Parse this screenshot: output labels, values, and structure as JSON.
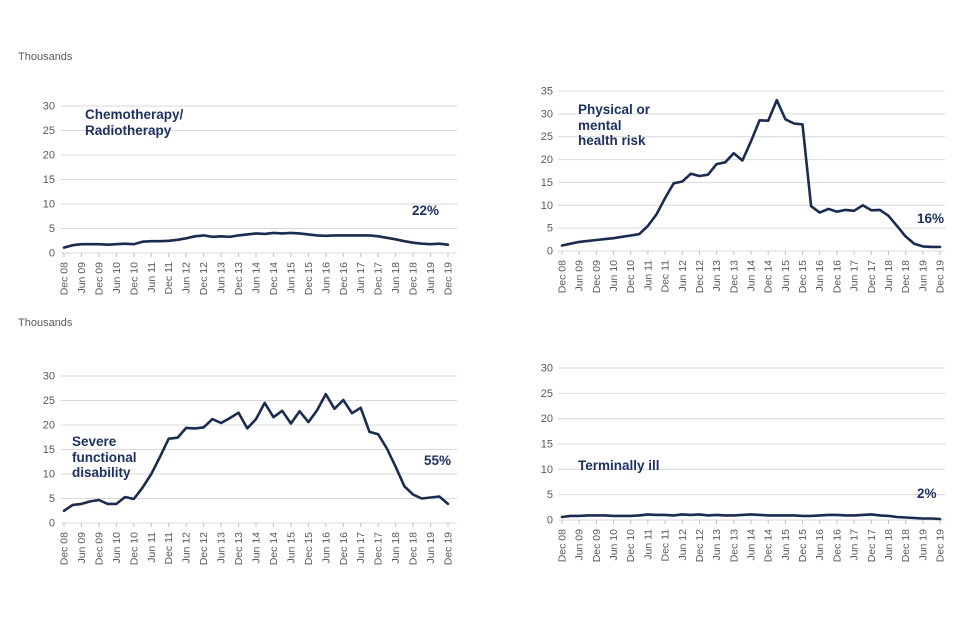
{
  "page": {
    "unit_label": "Thousands"
  },
  "chart_data": [
    {
      "id": "chemo",
      "type": "line",
      "title": "Chemotherapy/\nRadiotherapy",
      "annotation": "22%",
      "ylabel": "Thousands",
      "ylim": [
        0,
        30
      ],
      "y_ticks": [
        0,
        5,
        10,
        15,
        20,
        25,
        30
      ],
      "x_frequency": "quarterly, Dec 2008 - Dec 2019",
      "x_tick_labels": [
        "Dec 08",
        "Jun 09",
        "Dec 09",
        "Jun 10",
        "Dec 10",
        "Jun 11",
        "Dec 11",
        "Jun 12",
        "Dec 12",
        "Jun 13",
        "Dec 13",
        "Jun 14",
        "Dec 14",
        "Jun 15",
        "Dec 15",
        "Jun 16",
        "Dec 16",
        "Jun 17",
        "Dec 17",
        "Jun 18",
        "Dec 18",
        "Jun 19",
        "Dec 19"
      ],
      "values": [
        1.1,
        1.6,
        1.8,
        1.8,
        1.8,
        1.7,
        1.8,
        1.9,
        1.8,
        2.3,
        2.4,
        2.4,
        2.5,
        2.7,
        3.0,
        3.4,
        3.6,
        3.3,
        3.4,
        3.3,
        3.6,
        3.8,
        4.0,
        3.9,
        4.1,
        4.0,
        4.1,
        4.0,
        3.8,
        3.6,
        3.5,
        3.6,
        3.6,
        3.6,
        3.6,
        3.6,
        3.4,
        3.1,
        2.8,
        2.4,
        2.1,
        1.9,
        1.8,
        1.9,
        1.7
      ]
    },
    {
      "id": "physical",
      "type": "line",
      "title": "Physical or\nmental\nhealth risk",
      "annotation": "16%",
      "ylabel": "Thousands",
      "ylim": [
        0,
        35
      ],
      "y_ticks": [
        0,
        5,
        10,
        15,
        20,
        25,
        30,
        35
      ],
      "x_frequency": "quarterly, Dec 2008 - Dec 2019",
      "x_tick_labels": [
        "Dec 08",
        "Jun 09",
        "Dec 09",
        "Jun 10",
        "Dec 10",
        "Jun 11",
        "Dec 11",
        "Jun 12",
        "Dec 12",
        "Jun 13",
        "Dec 13",
        "Jun 14",
        "Dec 14",
        "Jun 15",
        "Dec 15",
        "Jun 16",
        "Dec 16",
        "Jun 17",
        "Dec 17",
        "Jun 18",
        "Dec 18",
        "Jun 19",
        "Dec 19"
      ],
      "values": [
        1.2,
        1.6,
        2.0,
        2.2,
        2.4,
        2.6,
        2.8,
        3.1,
        3.4,
        3.7,
        5.5,
        8.0,
        11.6,
        14.8,
        15.2,
        16.9,
        16.4,
        16.7,
        19.0,
        19.4,
        21.4,
        19.8,
        24.0,
        28.6,
        28.5,
        33.0,
        28.8,
        27.9,
        27.7,
        9.8,
        8.4,
        9.2,
        8.6,
        9.0,
        8.8,
        10.0,
        8.9,
        9.0,
        7.7,
        5.5,
        3.2,
        1.6,
        1.0,
        0.9,
        0.9
      ]
    },
    {
      "id": "severe",
      "type": "line",
      "title": "Severe\nfunctional\ndisability",
      "annotation": "55%",
      "ylabel": "Thousands",
      "ylim": [
        0,
        30
      ],
      "y_ticks": [
        0,
        5,
        10,
        15,
        20,
        25,
        30
      ],
      "x_frequency": "quarterly, Dec 2008 - Dec 2019",
      "x_tick_labels": [
        "Dec 08",
        "Jun 09",
        "Dec 09",
        "Jun 10",
        "Dec 10",
        "Jun 11",
        "Dec 11",
        "Jun 12",
        "Dec 12",
        "Jun 13",
        "Dec 13",
        "Jun 14",
        "Dec 14",
        "Jun 15",
        "Dec 15",
        "Jun 16",
        "Dec 16",
        "Jun 17",
        "Dec 17",
        "Jun 18",
        "Dec 18",
        "Jun 19",
        "Dec 19"
      ],
      "values": [
        2.5,
        3.7,
        3.9,
        4.4,
        4.7,
        3.9,
        3.9,
        5.3,
        4.9,
        7.2,
        10.0,
        13.5,
        17.2,
        17.4,
        19.4,
        19.3,
        19.5,
        21.2,
        20.4,
        21.4,
        22.5,
        19.3,
        21.2,
        24.5,
        21.6,
        22.9,
        20.3,
        22.8,
        20.6,
        23.0,
        26.3,
        23.3,
        25.1,
        22.4,
        23.5,
        18.6,
        18.1,
        15.2,
        11.5,
        7.5,
        5.8,
        5.0,
        5.2,
        5.4,
        3.9
      ]
    },
    {
      "id": "terminal",
      "type": "line",
      "title": "Terminally ill",
      "annotation": "2%",
      "ylabel": "Thousands",
      "ylim": [
        0,
        30
      ],
      "y_ticks": [
        0,
        5,
        10,
        15,
        20,
        25,
        30
      ],
      "x_frequency": "quarterly, Dec 2008 - Dec 2019",
      "x_tick_labels": [
        "Dec 08",
        "Jun 09",
        "Dec 09",
        "Jun 10",
        "Dec 10",
        "Jun 11",
        "Dec 11",
        "Jun 12",
        "Dec 12",
        "Jun 13",
        "Dec 13",
        "Jun 14",
        "Dec 14",
        "Jun 15",
        "Dec 15",
        "Jun 16",
        "Dec 16",
        "Jun 17",
        "Dec 17",
        "Jun 18",
        "Dec 18",
        "Jun 19",
        "Dec 19"
      ],
      "values": [
        0.6,
        0.8,
        0.8,
        0.9,
        0.9,
        0.9,
        0.8,
        0.8,
        0.8,
        0.9,
        1.1,
        1.0,
        1.0,
        0.9,
        1.1,
        1.0,
        1.1,
        0.9,
        1.0,
        0.9,
        0.9,
        1.0,
        1.1,
        1.0,
        0.9,
        0.9,
        0.9,
        0.9,
        0.8,
        0.8,
        0.9,
        1.0,
        1.0,
        0.9,
        0.9,
        1.0,
        1.1,
        0.9,
        0.8,
        0.6,
        0.5,
        0.4,
        0.3,
        0.3,
        0.2
      ]
    }
  ],
  "colors": {
    "line": "#1a2c50",
    "text_navy": "#1f3160",
    "axis_text": "#595959",
    "gridline": "#d9d9d9",
    "tick": "#bfbfbf"
  }
}
